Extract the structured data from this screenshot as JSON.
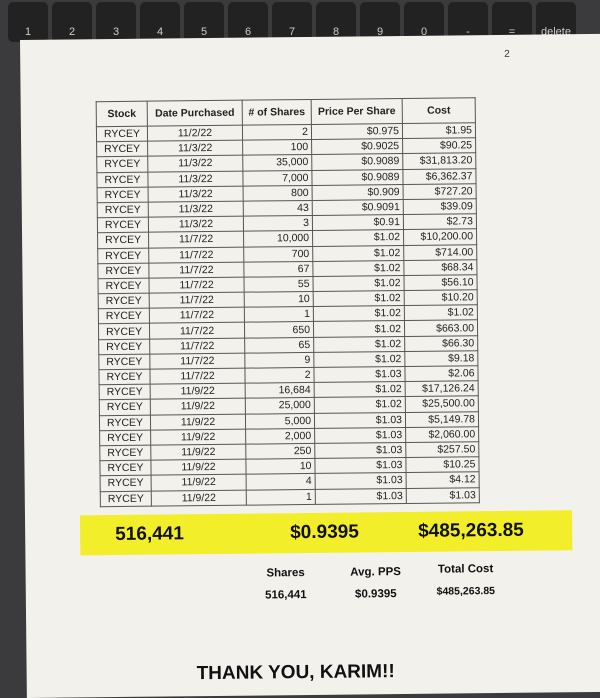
{
  "keyboard": {
    "keys": [
      "1",
      "2",
      "3",
      "4",
      "5",
      "6",
      "7",
      "8",
      "9",
      "0",
      "-",
      "=",
      "delete"
    ]
  },
  "page_number": "2",
  "table": {
    "header": [
      "Stock",
      "Date Purchased",
      "# of Shares",
      "Price Per Share",
      "Cost"
    ],
    "rows": [
      [
        "RYCEY",
        "11/2/22",
        "2",
        "$0.975",
        "$1.95"
      ],
      [
        "RYCEY",
        "11/3/22",
        "100",
        "$0.9025",
        "$90.25"
      ],
      [
        "RYCEY",
        "11/3/22",
        "35,000",
        "$0.9089",
        "$31,813.20"
      ],
      [
        "RYCEY",
        "11/3/22",
        "7,000",
        "$0.9089",
        "$6,362.37"
      ],
      [
        "RYCEY",
        "11/3/22",
        "800",
        "$0.909",
        "$727.20"
      ],
      [
        "RYCEY",
        "11/3/22",
        "43",
        "$0.9091",
        "$39.09"
      ],
      [
        "RYCEY",
        "11/3/22",
        "3",
        "$0.91",
        "$2.73"
      ],
      [
        "RYCEY",
        "11/7/22",
        "10,000",
        "$1.02",
        "$10,200.00"
      ],
      [
        "RYCEY",
        "11/7/22",
        "700",
        "$1.02",
        "$714.00"
      ],
      [
        "RYCEY",
        "11/7/22",
        "67",
        "$1.02",
        "$68.34"
      ],
      [
        "RYCEY",
        "11/7/22",
        "55",
        "$1.02",
        "$56.10"
      ],
      [
        "RYCEY",
        "11/7/22",
        "10",
        "$1.02",
        "$10.20"
      ],
      [
        "RYCEY",
        "11/7/22",
        "1",
        "$1.02",
        "$1.02"
      ],
      [
        "RYCEY",
        "11/7/22",
        "650",
        "$1.02",
        "$663.00"
      ],
      [
        "RYCEY",
        "11/7/22",
        "65",
        "$1.02",
        "$66.30"
      ],
      [
        "RYCEY",
        "11/7/22",
        "9",
        "$1.02",
        "$9.18"
      ],
      [
        "RYCEY",
        "11/7/22",
        "2",
        "$1.03",
        "$2.06"
      ],
      [
        "RYCEY",
        "11/9/22",
        "16,684",
        "$1.02",
        "$17,126.24"
      ],
      [
        "RYCEY",
        "11/9/22",
        "25,000",
        "$1.02",
        "$25,500.00"
      ],
      [
        "RYCEY",
        "11/9/22",
        "5,000",
        "$1.03",
        "$5,149.78"
      ],
      [
        "RYCEY",
        "11/9/22",
        "2,000",
        "$1.03",
        "$2,060.00"
      ],
      [
        "RYCEY",
        "11/9/22",
        "250",
        "$1.03",
        "$257.50"
      ],
      [
        "RYCEY",
        "11/9/22",
        "10",
        "$1.03",
        "$10.25"
      ],
      [
        "RYCEY",
        "11/9/22",
        "4",
        "$1.03",
        "$4.12"
      ],
      [
        "RYCEY",
        "11/9/22",
        "1",
        "$1.03",
        "$1.03"
      ]
    ],
    "totals": [
      "516,441",
      "$0.9395",
      "$485,263.85"
    ]
  },
  "summary": {
    "labels": [
      "Shares",
      "Avg. PPS",
      "Total Cost"
    ],
    "values": [
      "516,441",
      "$0.9395",
      "$485,263.85"
    ]
  },
  "footer": "THANK YOU, KARIM!!"
}
